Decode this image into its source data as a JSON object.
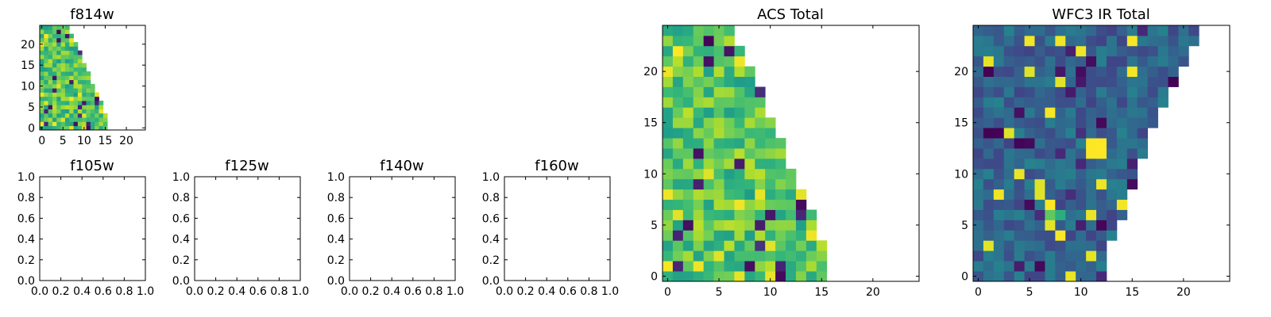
{
  "chart_data": [
    {
      "type": "heatmap",
      "title": "f814w",
      "xlim": [
        -0.5,
        24.5
      ],
      "ylim": [
        -0.5,
        24.5
      ],
      "xticks": [
        0,
        5,
        10,
        15,
        20
      ],
      "yticks": [
        0,
        5,
        10,
        15,
        20
      ],
      "colormap": "viridis",
      "row_extent": [
        16,
        16,
        16,
        16,
        15,
        15,
        15,
        14,
        14,
        13,
        13,
        12,
        12,
        12,
        11,
        11,
        10,
        10,
        10,
        9,
        9,
        8,
        8,
        7,
        7
      ],
      "cells_seed": 11,
      "value_range": [
        0.55,
        0.9
      ]
    },
    {
      "type": "scatter",
      "title": "f105w",
      "xlim": [
        0,
        1
      ],
      "ylim": [
        0,
        1
      ],
      "xticks": [
        "0.0",
        "0.2",
        "0.4",
        "0.6",
        "0.8",
        "1.0"
      ],
      "yticks": [
        "0.0",
        "0.2",
        "0.4",
        "0.6",
        "0.8",
        "1.0"
      ],
      "x": [],
      "y": []
    },
    {
      "type": "scatter",
      "title": "f125w",
      "xlim": [
        0,
        1
      ],
      "ylim": [
        0,
        1
      ],
      "xticks": [
        "0.0",
        "0.2",
        "0.4",
        "0.6",
        "0.8",
        "1.0"
      ],
      "yticks": [
        "0.0",
        "0.2",
        "0.4",
        "0.6",
        "0.8",
        "1.0"
      ],
      "x": [],
      "y": []
    },
    {
      "type": "scatter",
      "title": "f140w",
      "xlim": [
        0,
        1
      ],
      "ylim": [
        0,
        1
      ],
      "xticks": [
        "0.0",
        "0.2",
        "0.4",
        "0.6",
        "0.8",
        "1.0"
      ],
      "yticks": [
        "0.0",
        "0.2",
        "0.4",
        "0.6",
        "0.8",
        "1.0"
      ],
      "x": [],
      "y": []
    },
    {
      "type": "scatter",
      "title": "f160w",
      "xlim": [
        0,
        1
      ],
      "ylim": [
        0,
        1
      ],
      "xticks": [
        "0.0",
        "0.2",
        "0.4",
        "0.6",
        "0.8",
        "1.0"
      ],
      "yticks": [
        "0.0",
        "0.2",
        "0.4",
        "0.6",
        "0.8",
        "1.0"
      ],
      "x": [],
      "y": []
    },
    {
      "type": "heatmap",
      "title": "ACS Total",
      "xlim": [
        -0.5,
        24.5
      ],
      "ylim": [
        -0.5,
        24.5
      ],
      "xticks": [
        0,
        5,
        10,
        15,
        20
      ],
      "yticks": [
        0,
        5,
        10,
        15,
        20
      ],
      "colormap": "viridis",
      "row_extent": [
        16,
        16,
        16,
        16,
        15,
        15,
        15,
        14,
        14,
        13,
        13,
        12,
        12,
        12,
        11,
        11,
        10,
        10,
        10,
        9,
        9,
        8,
        8,
        7,
        7
      ],
      "cells_seed": 11,
      "value_range": [
        0.55,
        0.9
      ]
    },
    {
      "type": "heatmap",
      "title": "WFC3 IR Total",
      "xlim": [
        -0.5,
        24.5
      ],
      "ylim": [
        -0.5,
        24.5
      ],
      "xticks": [
        0,
        5,
        10,
        15,
        20
      ],
      "yticks": [
        0,
        5,
        10,
        15,
        20
      ],
      "colormap": "viridis",
      "row_extent": [
        13,
        13,
        13,
        13,
        14,
        14,
        15,
        15,
        15,
        16,
        16,
        16,
        17,
        17,
        17,
        18,
        18,
        19,
        19,
        20,
        20,
        21,
        21,
        22,
        22
      ],
      "cells_seed": 29,
      "value_range": [
        0.2,
        0.45
      ],
      "hot_cells": [
        [
          11,
          12,
          1.0
        ],
        [
          12,
          12,
          1.0
        ],
        [
          11,
          13,
          1.0
        ],
        [
          12,
          13,
          1.0
        ],
        [
          7,
          7,
          1.0
        ],
        [
          7,
          6,
          0.75
        ],
        [
          8,
          6,
          0.62
        ]
      ]
    }
  ]
}
